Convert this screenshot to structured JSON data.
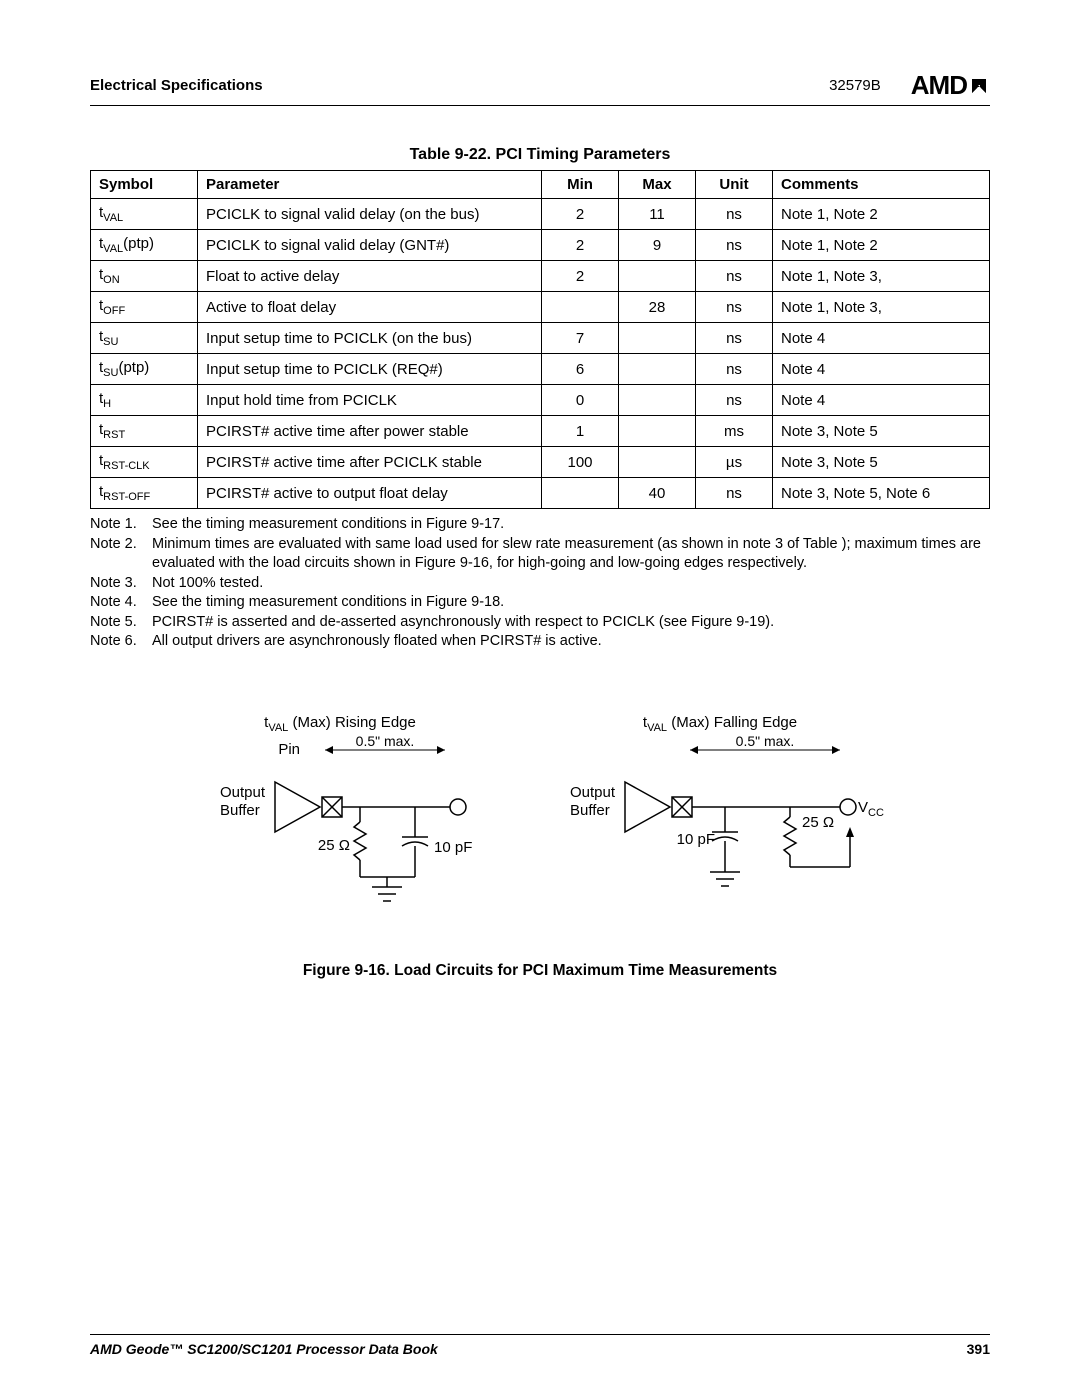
{
  "header": {
    "left": "Electrical Specifications",
    "docnum": "32579B",
    "logo": "AMD"
  },
  "table": {
    "title": "Table 9-22.  PCI Timing Parameters",
    "columns": [
      "Symbol",
      "Parameter",
      "Min",
      "Max",
      "Unit",
      "Comments"
    ],
    "rows": [
      {
        "sym_base": "t",
        "sym_sub": "VAL",
        "sym_suffix": "",
        "param": "PCICLK to signal valid delay (on the bus)",
        "min": "2",
        "max": "11",
        "unit": "ns",
        "comments": "Note 1, Note 2"
      },
      {
        "sym_base": "t",
        "sym_sub": "VAL",
        "sym_suffix": "(ptp)",
        "param": "PCICLK to signal valid delay (GNT#)",
        "min": "2",
        "max": "9",
        "unit": "ns",
        "comments": "Note 1, Note 2"
      },
      {
        "sym_base": "t",
        "sym_sub": "ON",
        "sym_suffix": "",
        "param": "Float to active delay",
        "min": "2",
        "max": "",
        "unit": "ns",
        "comments": "Note 1, Note 3,"
      },
      {
        "sym_base": "t",
        "sym_sub": "OFF",
        "sym_suffix": "",
        "param": "Active to float delay",
        "min": "",
        "max": "28",
        "unit": "ns",
        "comments": "Note 1, Note 3,"
      },
      {
        "sym_base": "t",
        "sym_sub": "SU",
        "sym_suffix": "",
        "param": "Input setup time to PCICLK (on the bus)",
        "min": "7",
        "max": "",
        "unit": "ns",
        "comments": "Note 4"
      },
      {
        "sym_base": "t",
        "sym_sub": "SU",
        "sym_suffix": "(ptp)",
        "param": "Input setup time to PCICLK (REQ#)",
        "min": "6",
        "max": "",
        "unit": "ns",
        "comments": "Note 4"
      },
      {
        "sym_base": "t",
        "sym_sub": "H",
        "sym_suffix": "",
        "param": "Input hold time from PCICLK",
        "min": "0",
        "max": "",
        "unit": "ns",
        "comments": "Note 4"
      },
      {
        "sym_base": "t",
        "sym_sub": "RST",
        "sym_suffix": "",
        "param": "PCIRST# active time after power stable",
        "min": "1",
        "max": "",
        "unit": "ms",
        "comments": "Note 3, Note 5"
      },
      {
        "sym_base": "t",
        "sym_sub": "RST-CLK",
        "sym_suffix": "",
        "param": "PCIRST# active time after PCICLK stable",
        "min": "100",
        "max": "",
        "unit": "µs",
        "comments": "Note 3, Note 5"
      },
      {
        "sym_base": "t",
        "sym_sub": "RST-OFF",
        "sym_suffix": "",
        "param": "PCIRST# active to output float delay",
        "min": "",
        "max": "40",
        "unit": "ns",
        "comments": "Note 3, Note 5, Note 6"
      }
    ]
  },
  "notes": [
    {
      "label": "Note 1.",
      "text": "See the timing measurement conditions in Figure 9-17."
    },
    {
      "label": "Note 2.",
      "text": "Minimum times are evaluated with same load used for slew rate measurement (as shown in note 3 of Table ); maximum times are evaluated with the load circuits shown in Figure 9-16, for high-going and low-going edges respectively."
    },
    {
      "label": "Note 3.",
      "text": "Not 100% tested."
    },
    {
      "label": "Note 4.",
      "text": "See the timing measurement conditions in Figure 9-18."
    },
    {
      "label": "Note 5.",
      "text": "PCIRST# is asserted and de-asserted asynchronously with respect to PCICLK (see Figure 9-19)."
    },
    {
      "label": "Note 6.",
      "text": "All output drivers are asynchronously floated when PCIRST# is active."
    }
  ],
  "figure": {
    "left": {
      "title_pre": "t",
      "title_sub": "VAL",
      "title_post": " (Max) Rising Edge",
      "pin": "Pin",
      "dim": "0.5\" max.",
      "buffer": "Output\nBuffer",
      "res": "25 Ω",
      "cap": "10 pF"
    },
    "right": {
      "title_pre": "t",
      "title_sub": "VAL",
      "title_post": " (Max) Falling Edge",
      "dim": "0.5\" max.",
      "buffer": "Output\nBuffer",
      "cap": "10 pF",
      "res": "25 Ω",
      "vcc": "V",
      "vcc_sub": "CC"
    },
    "caption": "Figure 9-16.  Load Circuits for PCI Maximum Time Measurements"
  },
  "footer": {
    "book": "AMD Geode™ SC1200/SC1201 Processor Data Book",
    "page": "391"
  }
}
